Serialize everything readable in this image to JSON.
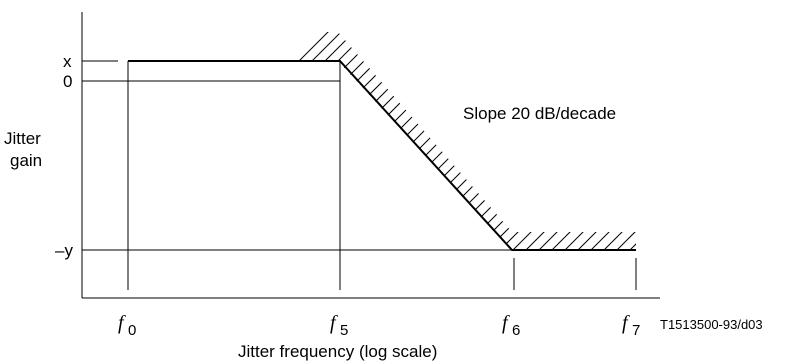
{
  "figure_id": "T1513500-93/d03",
  "y_axis": {
    "title_line1": "Jitter",
    "title_line2": "gain",
    "ticks": [
      {
        "label": "x"
      },
      {
        "label": "0"
      },
      {
        "label": "–y"
      }
    ]
  },
  "x_axis": {
    "title": "Jitter frequency (log scale)",
    "ticks": [
      {
        "name": "f",
        "sub": "0"
      },
      {
        "name": "f",
        "sub": "5"
      },
      {
        "name": "f",
        "sub": "6"
      },
      {
        "name": "f",
        "sub": "7"
      }
    ]
  },
  "annotation": {
    "slope_text": "Slope 20 dB/decade"
  },
  "chart_data": {
    "type": "line",
    "x_scale": "log",
    "x_points": [
      "f0",
      "f5",
      "f6",
      "f7"
    ],
    "mask_levels": [
      "x",
      "x",
      "–y",
      "–y"
    ],
    "slope": "20 dB/decade"
  }
}
